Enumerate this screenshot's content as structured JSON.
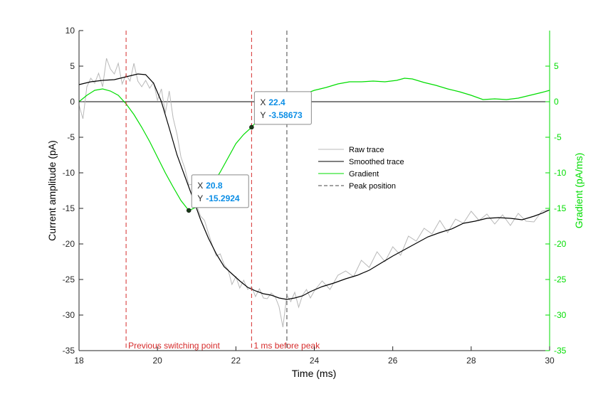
{
  "chart_data": {
    "type": "line",
    "xlabel": "Time (ms)",
    "ylabel": "Current amplitude (pA)",
    "ylabel_right": "Gradient (pA/ms)",
    "xlim": [
      18,
      30
    ],
    "ylim": [
      -35,
      10
    ],
    "ylim_right": [
      -35,
      10
    ],
    "xticks": [
      "18",
      "20",
      "22",
      "24",
      "26",
      "28",
      "30"
    ],
    "yticks": [
      "10",
      "5",
      "0",
      "-5",
      "-10",
      "-15",
      "-20",
      "-25",
      "-30",
      "-35"
    ],
    "yticks_right": [
      "5",
      "0",
      "-5",
      "-10",
      "-15",
      "-20",
      "-25",
      "-30",
      "-35"
    ],
    "series": [
      {
        "name": "Raw trace",
        "color": "#b8b8b8",
        "axis": "left",
        "x": [
          18.0,
          18.1,
          18.2,
          18.3,
          18.4,
          18.5,
          18.6,
          18.7,
          18.8,
          18.9,
          19.0,
          19.1,
          19.2,
          19.3,
          19.4,
          19.5,
          19.6,
          19.7,
          19.8,
          19.9,
          20.0,
          20.1,
          20.2,
          20.3,
          20.4,
          20.5,
          20.6,
          20.7,
          20.8,
          20.9,
          21.0,
          21.1,
          21.2,
          21.3,
          21.4,
          21.5,
          21.6,
          21.7,
          21.8,
          21.9,
          22.0,
          22.1,
          22.2,
          22.3,
          22.4,
          22.5,
          22.6,
          22.7,
          22.8,
          22.9,
          23.0,
          23.1,
          23.2,
          23.3,
          23.4,
          23.5,
          23.6,
          23.7,
          23.8,
          23.9,
          24.0,
          24.2,
          24.4,
          24.6,
          24.8,
          25.0,
          25.2,
          25.4,
          25.6,
          25.8,
          26.0,
          26.2,
          26.4,
          26.6,
          26.8,
          27.0,
          27.2,
          27.4,
          27.6,
          27.8,
          28.0,
          28.2,
          28.4,
          28.6,
          28.8,
          29.0,
          29.2,
          29.4,
          29.6,
          29.8,
          30.0
        ],
        "y": [
          -0.5,
          -2.4,
          2.1,
          3.3,
          2.6,
          4.0,
          2.1,
          6.1,
          4.6,
          3.9,
          5.4,
          2.5,
          3.8,
          2.9,
          5.4,
          2.9,
          2.1,
          3.0,
          1.9,
          2.7,
          0.2,
          1.8,
          -1.6,
          1.5,
          -2.3,
          -4.6,
          -7.8,
          -9.4,
          -11.7,
          -11.6,
          -14.6,
          -16.1,
          -16.7,
          -18.5,
          -20.2,
          -21.7,
          -21.4,
          -22.9,
          -23.6,
          -25.7,
          -24.6,
          -26.2,
          -25.1,
          -26.4,
          -26.0,
          -27.4,
          -26.3,
          -27.6,
          -27.7,
          -26.9,
          -27.4,
          -28.8,
          -31.7,
          -27.2,
          -28.1,
          -26.8,
          -28.9,
          -27.2,
          -26.4,
          -27.6,
          -26.6,
          -25.2,
          -26.4,
          -24.4,
          -23.8,
          -24.6,
          -22.3,
          -23.3,
          -21.1,
          -22.5,
          -20.4,
          -21.6,
          -18.9,
          -19.6,
          -17.8,
          -18.6,
          -16.7,
          -18.4,
          -16.5,
          -17.1,
          -15.4,
          -16.7,
          -15.8,
          -17.2,
          -15.9,
          -17.4,
          -15.7,
          -16.8,
          -16.9,
          -15.4,
          -15.2
        ]
      },
      {
        "name": "Smoothed trace",
        "color": "#000000",
        "axis": "left",
        "x": [
          18.0,
          18.3,
          18.6,
          18.9,
          19.2,
          19.5,
          19.7,
          19.9,
          20.1,
          20.3,
          20.5,
          20.7,
          20.9,
          21.1,
          21.3,
          21.5,
          21.7,
          21.9,
          22.1,
          22.3,
          22.5,
          22.7,
          22.9,
          23.1,
          23.3,
          23.5,
          23.7,
          23.9,
          24.2,
          24.5,
          24.8,
          25.1,
          25.4,
          25.7,
          26.0,
          26.3,
          26.6,
          26.9,
          27.2,
          27.5,
          27.8,
          28.1,
          28.4,
          28.7,
          29.0,
          29.3,
          29.6,
          29.8,
          30.0
        ],
        "y": [
          2.4,
          2.8,
          3.0,
          3.1,
          3.5,
          3.9,
          3.8,
          2.6,
          0.0,
          -3.7,
          -7.5,
          -10.5,
          -13.5,
          -16.6,
          -19.2,
          -21.4,
          -23.2,
          -24.2,
          -25.2,
          -26.1,
          -26.6,
          -27.0,
          -27.2,
          -27.6,
          -27.8,
          -27.6,
          -27.3,
          -26.7,
          -26.0,
          -25.5,
          -24.9,
          -24.4,
          -23.7,
          -22.7,
          -21.7,
          -20.8,
          -19.9,
          -19.0,
          -18.4,
          -17.9,
          -17.1,
          -16.8,
          -16.4,
          -16.3,
          -16.4,
          -16.6,
          -16.1,
          -15.7,
          -15.2
        ]
      },
      {
        "name": "Gradient",
        "color": "#00dd00",
        "axis": "right",
        "x": [
          18.0,
          18.2,
          18.4,
          18.6,
          18.8,
          19.0,
          19.2,
          19.4,
          19.6,
          19.8,
          20.0,
          20.2,
          20.4,
          20.6,
          20.8,
          21.0,
          21.2,
          21.4,
          21.6,
          21.8,
          22.0,
          22.2,
          22.4,
          22.6,
          22.8,
          23.0,
          23.2,
          23.4,
          23.6,
          23.8,
          24.0,
          24.3,
          24.6,
          24.9,
          25.2,
          25.5,
          25.8,
          26.1,
          26.3,
          26.5,
          26.8,
          27.1,
          27.4,
          27.7,
          28.0,
          28.3,
          28.6,
          28.9,
          29.2,
          29.5,
          29.8,
          30.0
        ],
        "y": [
          0.0,
          0.9,
          1.6,
          1.8,
          1.5,
          0.9,
          -0.3,
          -1.8,
          -3.6,
          -5.6,
          -7.8,
          -10.0,
          -12.0,
          -13.9,
          -15.3,
          -14.8,
          -13.3,
          -11.7,
          -9.9,
          -7.9,
          -5.9,
          -4.6,
          -3.6,
          -2.3,
          -1.3,
          -0.6,
          -0.1,
          0.3,
          0.7,
          1.2,
          1.6,
          2.0,
          2.5,
          2.8,
          2.8,
          2.9,
          2.8,
          3.0,
          3.3,
          3.2,
          2.7,
          2.3,
          1.8,
          1.4,
          0.9,
          0.3,
          0.4,
          0.3,
          0.5,
          0.9,
          1.3,
          1.6
        ]
      }
    ],
    "vlines": [
      {
        "name": "Previous switching point",
        "x": 19.2,
        "color": "#d52b2b",
        "style": "dashed",
        "label": "Previous switching point"
      },
      {
        "name": "1 ms before peak",
        "x": 22.4,
        "color": "#d52b2b",
        "style": "dashed",
        "label": "1 ms before peak"
      },
      {
        "name": "Peak position",
        "x": 23.3,
        "color": "#444444",
        "style": "dashed"
      }
    ],
    "legend": {
      "placement": "center-right",
      "entries": [
        {
          "label": "Raw trace",
          "color": "#b8b8b8",
          "style": "solid"
        },
        {
          "label": "Smoothed trace",
          "color": "#000000",
          "style": "solid"
        },
        {
          "label": "Gradient",
          "color": "#00dd00",
          "style": "solid"
        },
        {
          "label": "Peak position",
          "color": "#444444",
          "style": "dashed"
        }
      ]
    },
    "datatips": [
      {
        "x": 20.8,
        "y": -15.2924,
        "x_label": "X",
        "y_label": "Y",
        "x_text": "20.8",
        "y_text": "-15.2924"
      },
      {
        "x": 22.4,
        "y": -3.58673,
        "x_label": "X",
        "y_label": "Y",
        "x_text": "22.4",
        "y_text": "-3.58673"
      }
    ],
    "grid": false
  }
}
